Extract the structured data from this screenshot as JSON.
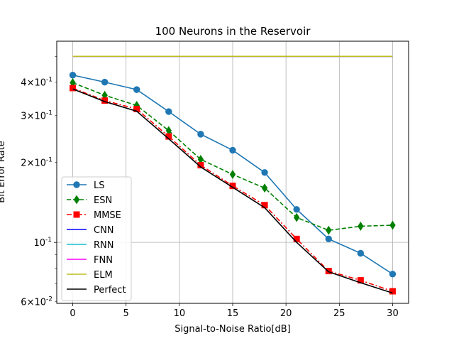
{
  "chart_data": {
    "type": "line",
    "title": "100 Neurons in the Reservoir",
    "xlabel": "Signal-to-Noise Ratio[dB]",
    "ylabel": "Bit Error Rate",
    "yscale": "log",
    "xlim": [
      -1.5,
      31.5
    ],
    "ylim": [
      0.059,
      0.57
    ],
    "grid": true,
    "legend_position": "lower-left",
    "x": [
      0,
      3,
      6,
      9,
      12,
      15,
      18,
      21,
      24,
      27,
      30
    ],
    "x_ticks": [
      0,
      5,
      10,
      15,
      20,
      25,
      30
    ],
    "x_tick_labels": [
      "0",
      "5",
      "10",
      "15",
      "20",
      "25",
      "30"
    ],
    "y_ticks_major": [
      0.1
    ],
    "y_ticks_major_labels": [
      "10^{-1}"
    ],
    "y_ticks_minor": [
      0.06,
      0.2,
      0.3,
      0.4
    ],
    "y_ticks_minor_labels": [
      "6×10^{-2}",
      "2×10^{-1}",
      "3×10^{-1}",
      "4×10^{-1}"
    ],
    "y_ticks_minor_unlabeled": [
      0.07,
      0.08,
      0.09,
      0.5
    ],
    "series": [
      {
        "name": "LS",
        "color": "#1f77b4",
        "dash": "solid",
        "marker": "circle",
        "values": [
          0.425,
          0.4,
          0.375,
          0.31,
          0.255,
          0.222,
          0.183,
          0.133,
          0.103,
          0.091,
          0.076
        ]
      },
      {
        "name": "ESN",
        "color": "#008000",
        "dash": "dashed",
        "marker": "diamond",
        "values": [
          0.398,
          0.357,
          0.327,
          0.263,
          0.205,
          0.18,
          0.16,
          0.124,
          0.111,
          0.115,
          0.116
        ]
      },
      {
        "name": "MMSE",
        "color": "#ff0000",
        "dash": "dashdot",
        "marker": "square",
        "values": [
          0.38,
          0.341,
          0.317,
          0.25,
          0.195,
          0.163,
          0.138,
          0.103,
          0.078,
          0.072,
          0.0655
        ]
      },
      {
        "name": "CNN",
        "color": "#0000ff",
        "dash": "solid",
        "marker": "none",
        "values": [
          0.5,
          0.5,
          0.5,
          0.5,
          0.5,
          0.5,
          0.5,
          0.5,
          0.5,
          0.5,
          0.5
        ]
      },
      {
        "name": "RNN",
        "color": "#17becf",
        "dash": "solid",
        "marker": "none",
        "values": [
          0.5,
          0.5,
          0.5,
          0.5,
          0.5,
          0.5,
          0.5,
          0.5,
          0.5,
          0.5,
          0.5
        ]
      },
      {
        "name": "FNN",
        "color": "#ff00ff",
        "dash": "solid",
        "marker": "none",
        "values": [
          0.5,
          0.5,
          0.5,
          0.5,
          0.5,
          0.5,
          0.5,
          0.5,
          0.5,
          0.5,
          0.5
        ]
      },
      {
        "name": "ELM",
        "color": "#bcbd22",
        "dash": "solid",
        "marker": "none",
        "values": [
          0.5,
          0.5,
          0.5,
          0.5,
          0.5,
          0.5,
          0.5,
          0.5,
          0.5,
          0.5,
          0.5
        ]
      },
      {
        "name": "Perfect",
        "color": "#000000",
        "dash": "solid",
        "marker": "none",
        "values": [
          0.377,
          0.338,
          0.311,
          0.245,
          0.192,
          0.161,
          0.135,
          0.1,
          0.0775,
          0.0705,
          0.0645
        ]
      }
    ]
  }
}
